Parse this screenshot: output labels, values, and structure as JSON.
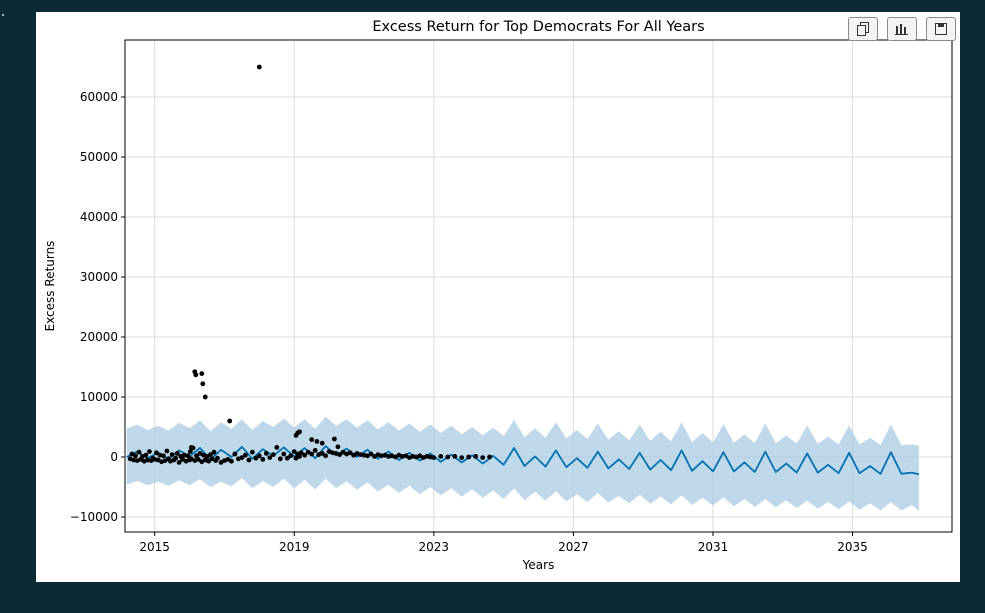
{
  "toolbar": {
    "buttons": [
      {
        "name": "copy-button",
        "icon": "copy-icon"
      },
      {
        "name": "chart-button",
        "icon": "bar-chart-icon"
      },
      {
        "name": "save-button",
        "icon": "save-icon"
      }
    ]
  },
  "colors": {
    "page_background": "#0b2a33",
    "panel_background": "#ffffff",
    "forecast_line": "#0072b2",
    "uncertainty_band": "#a9cce3",
    "observed_points": "#000000",
    "grid": "#dcdcdc"
  },
  "chart_data": {
    "type": "line",
    "title": "Excess Return for Top Democrats For All Years",
    "xlabel": "Years",
    "ylabel": "Excess Returns",
    "xlim": [
      2014.15,
      2037.85
    ],
    "ylim": [
      -12500,
      69500
    ],
    "x_ticks": [
      2015,
      2019,
      2023,
      2027,
      2031,
      2035
    ],
    "x_tick_labels": [
      "2015",
      "2019",
      "2023",
      "2027",
      "2031",
      "2035"
    ],
    "y_ticks": [
      -10000,
      0,
      10000,
      20000,
      30000,
      40000,
      50000,
      60000
    ],
    "y_tick_labels": [
      "−10000",
      "0",
      "10000",
      "20000",
      "30000",
      "40000",
      "50000",
      "60000"
    ],
    "grid": true,
    "legend": "none",
    "series": [
      {
        "kind": "forecast",
        "x": [
          2014.2,
          2014.5,
          2014.8,
          2015.1,
          2015.4,
          2015.7,
          2016.0,
          2016.3,
          2016.6,
          2016.9,
          2017.2,
          2017.5,
          2017.8,
          2018.1,
          2018.4,
          2018.7,
          2019.0,
          2019.3,
          2019.6,
          2019.9,
          2020.2,
          2020.5,
          2020.8,
          2021.1,
          2021.4,
          2021.7,
          2022.0,
          2022.3,
          2022.6,
          2022.9,
          2023.2,
          2023.5,
          2023.8,
          2024.1,
          2024.4,
          2024.7,
          2025.0,
          2025.3,
          2025.6,
          2025.9,
          2026.2,
          2026.5,
          2026.8,
          2027.1,
          2027.4,
          2027.7,
          2028.0,
          2028.3,
          2028.6,
          2028.9,
          2029.2,
          2029.5,
          2029.8,
          2030.1,
          2030.4,
          2030.7,
          2031.0,
          2031.3,
          2031.6,
          2031.9,
          2032.2,
          2032.5,
          2032.8,
          2033.1,
          2033.4,
          2033.7,
          2034.0,
          2034.3,
          2034.6,
          2034.9,
          2035.2,
          2035.5,
          2035.8,
          2036.1,
          2036.4,
          2036.7,
          2036.9
        ],
        "y": [
          0,
          900,
          -200,
          700,
          -300,
          1100,
          100,
          1500,
          -400,
          1200,
          0,
          1700,
          -300,
          1300,
          200,
          1600,
          100,
          1500,
          -200,
          1800,
          300,
          1400,
          0,
          1200,
          -300,
          900,
          -500,
          700,
          -600,
          600,
          -800,
          400,
          -900,
          300,
          -1100,
          200,
          -1300,
          1500,
          -1500,
          100,
          -1600,
          1100,
          -1700,
          -200,
          -1800,
          900,
          -1900,
          -400,
          -2000,
          700,
          -2100,
          -500,
          -2200,
          1100,
          -2300,
          -700,
          -2400,
          800,
          -2400,
          -900,
          -2500,
          900,
          -2500,
          -1100,
          -2600,
          600,
          -2600,
          -1300,
          -2700,
          700,
          -2700,
          -1500,
          -2800,
          800,
          -2800,
          -2600,
          -2900
        ],
        "lower": [
          -4600,
          -4000,
          -4700,
          -4100,
          -4800,
          -3900,
          -4700,
          -3700,
          -5000,
          -4100,
          -4900,
          -3500,
          -5200,
          -4000,
          -5000,
          -3600,
          -5200,
          -3800,
          -5400,
          -3600,
          -5200,
          -4000,
          -5500,
          -4200,
          -5800,
          -4600,
          -6000,
          -4800,
          -6200,
          -5000,
          -6400,
          -5200,
          -6600,
          -5400,
          -6800,
          -5600,
          -7000,
          -5200,
          -7200,
          -5800,
          -7300,
          -5700,
          -7400,
          -6200,
          -7500,
          -6000,
          -7600,
          -6500,
          -7700,
          -6300,
          -7800,
          -6600,
          -7900,
          -6400,
          -8000,
          -6800,
          -8100,
          -6700,
          -8200,
          -7000,
          -8300,
          -7000,
          -8400,
          -7200,
          -8500,
          -7300,
          -8600,
          -7500,
          -8700,
          -7400,
          -8800,
          -7700,
          -8900,
          -7500,
          -8900,
          -8000,
          -9000
        ],
        "upper": [
          4700,
          5400,
          4500,
          5200,
          4400,
          5700,
          4800,
          6100,
          4300,
          5800,
          4700,
          6300,
          4500,
          6000,
          5000,
          6400,
          4900,
          6300,
          4700,
          6700,
          5200,
          6300,
          4900,
          6100,
          4600,
          5800,
          4400,
          5600,
          4200,
          5400,
          4000,
          5200,
          3800,
          5000,
          3600,
          4900,
          3500,
          6200,
          3300,
          4800,
          3200,
          5800,
          3100,
          4500,
          3000,
          5600,
          2900,
          4300,
          2800,
          5400,
          2700,
          4200,
          2600,
          5800,
          2500,
          4000,
          2400,
          5500,
          2400,
          3800,
          2300,
          5600,
          2300,
          3600,
          2200,
          5300,
          2200,
          3400,
          2100,
          5300,
          2100,
          3200,
          2000,
          5400,
          2000,
          2100,
          1900
        ]
      },
      {
        "kind": "observed",
        "x": [
          2014.3,
          2014.35,
          2014.4,
          2014.45,
          2014.5,
          2014.55,
          2014.6,
          2014.65,
          2014.7,
          2014.75,
          2014.8,
          2014.85,
          2014.9,
          2014.95,
          2015.0,
          2015.05,
          2015.1,
          2015.15,
          2015.2,
          2015.25,
          2015.3,
          2015.35,
          2015.4,
          2015.45,
          2015.5,
          2015.55,
          2015.6,
          2015.65,
          2015.7,
          2015.75,
          2015.8,
          2015.85,
          2015.9,
          2015.95,
          2016.0,
          2016.02,
          2016.05,
          2016.1,
          2016.15,
          2016.2,
          2016.25,
          2016.3,
          2016.35,
          2016.4,
          2016.45,
          2016.5,
          2016.55,
          2016.6,
          2016.65,
          2016.7,
          2016.75,
          2016.8,
          2016.9,
          2017.0,
          2017.1,
          2017.2,
          2017.3,
          2017.4,
          2017.5,
          2017.6,
          2017.7,
          2017.8,
          2017.9,
          2018.0,
          2018.1,
          2018.2,
          2018.3,
          2018.4,
          2018.5,
          2018.6,
          2018.7,
          2018.8,
          2018.9,
          2019.0,
          2019.05,
          2019.1,
          2019.15,
          2019.2,
          2019.3,
          2019.4,
          2019.5,
          2019.6,
          2019.7,
          2019.8,
          2019.9,
          2020.0,
          2020.1,
          2020.2,
          2020.3,
          2020.4,
          2020.5,
          2020.6,
          2020.7,
          2020.8,
          2020.9,
          2021.0,
          2021.1,
          2021.2,
          2021.3,
          2021.4,
          2021.5,
          2021.6,
          2021.7,
          2021.8,
          2021.9,
          2022.0,
          2022.1,
          2022.2,
          2022.3,
          2022.4,
          2022.5,
          2022.6,
          2022.7,
          2022.8,
          2022.9,
          2023.0,
          2023.2,
          2023.4,
          2023.6,
          2023.8,
          2024.0,
          2024.2,
          2024.4,
          2024.6,
          2018.0,
          2016.15,
          2016.18,
          2016.35,
          2016.38,
          2016.45,
          2017.15,
          2019.05,
          2019.15,
          2019.5,
          2019.65,
          2019.8,
          2020.15,
          2020.25,
          2019.1,
          2016.05
        ],
        "y": [
          -300,
          500,
          -500,
          200,
          -600,
          800,
          -400,
          100,
          -700,
          300,
          -500,
          900,
          -600,
          -200,
          -400,
          700,
          -500,
          300,
          -800,
          200,
          -600,
          1000,
          -300,
          -700,
          400,
          -500,
          -200,
          600,
          -900,
          100,
          -400,
          300,
          -700,
          200,
          -500,
          900,
          -300,
          1500,
          -600,
          200,
          -400,
          600,
          -800,
          300,
          -500,
          100,
          -700,
          400,
          -300,
          800,
          -600,
          -200,
          -900,
          -600,
          -400,
          -700,
          500,
          -300,
          -100,
          300,
          -500,
          800,
          -200,
          200,
          -400,
          600,
          -100,
          400,
          1600,
          -300,
          500,
          -200,
          200,
          900,
          -200,
          500,
          100,
          700,
          300,
          800,
          500,
          1100,
          400,
          600,
          200,
          900,
          700,
          600,
          400,
          800,
          500,
          700,
          300,
          600,
          400,
          300,
          200,
          500,
          100,
          400,
          200,
          300,
          100,
          200,
          0,
          300,
          100,
          200,
          -100,
          100,
          0,
          200,
          -100,
          100,
          0,
          -100,
          100,
          0,
          100,
          -100,
          0,
          100,
          -100,
          0,
          65000,
          14200,
          13700,
          13900,
          12200,
          10000,
          6000,
          3600,
          4200,
          2900,
          2600,
          2300,
          3000,
          1700,
          4000,
          1600
        ]
      }
    ]
  }
}
